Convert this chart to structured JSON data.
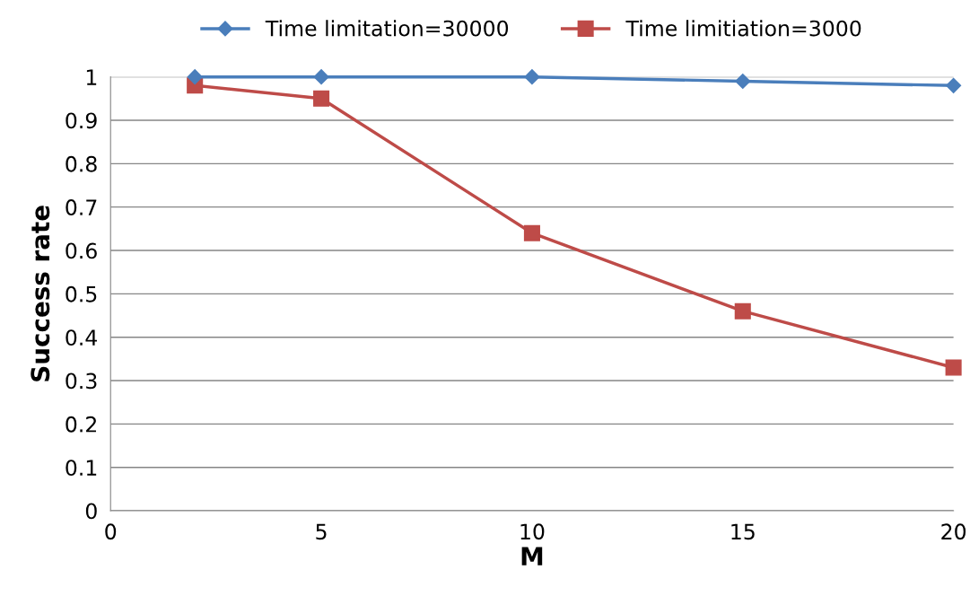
{
  "chart_data": {
    "type": "line",
    "xlabel": "M",
    "ylabel": "Success rate",
    "x": [
      2,
      5,
      10,
      15,
      20
    ],
    "series": [
      {
        "name": "Time limitation=30000",
        "color": "#4a7ebb",
        "marker": "diamond",
        "values": [
          1.0,
          1.0,
          1.0,
          0.99,
          0.98
        ]
      },
      {
        "name": "Time limitiation=3000",
        "color": "#be4b48",
        "marker": "square",
        "values": [
          0.98,
          0.95,
          0.64,
          0.46,
          0.33
        ]
      }
    ],
    "xlim": [
      0,
      20
    ],
    "xticks": [
      0,
      5,
      10,
      15,
      20
    ],
    "ylim": [
      0,
      1
    ],
    "yticks": [
      0,
      0.1,
      0.2,
      0.3,
      0.4,
      0.5,
      0.6,
      0.7,
      0.8,
      0.9,
      1
    ],
    "grid": "y",
    "legend": "top",
    "line_style": "solid"
  }
}
